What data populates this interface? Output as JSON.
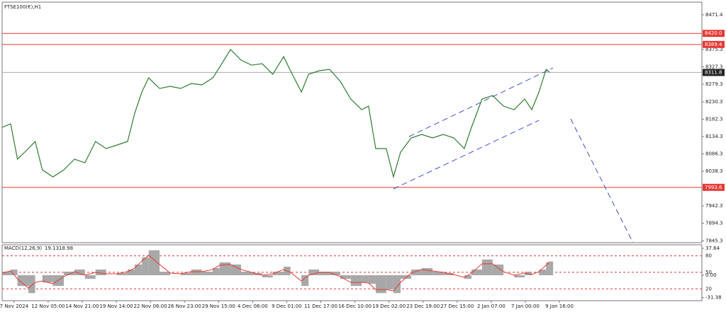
{
  "chart_data": [
    {
      "type": "line",
      "title": "FTSE100(€),H1",
      "x": [
        -0.35,
        -0.1,
        0.1,
        0.42,
        0.62,
        0.83,
        1.14,
        1.46,
        1.77,
        2.08,
        2.39,
        2.7,
        3.02,
        3.33,
        3.54,
        3.75,
        3.95,
        4.27,
        4.58,
        4.89,
        5.2,
        5.51,
        5.83,
        6.03,
        6.35,
        6.66,
        6.97,
        7.28,
        7.59,
        7.91,
        8.11,
        8.43,
        8.64,
        8.95,
        9.26,
        9.57,
        9.88,
        10.2,
        10.4,
        10.61,
        10.92,
        11.13,
        11.34,
        11.65,
        11.96,
        12.28,
        12.59,
        12.9,
        13.21,
        13.42,
        13.73,
        14.04,
        14.36,
        14.67,
        14.98,
        15.19,
        15.4,
        15.61,
        15.71
      ],
      "series": [
        {
          "color": "#2e7d32",
          "values": [
            8159.8,
            8169.5,
            8071.6,
            8101,
            8120.6,
            8042,
            8022.6,
            8042,
            8071.6,
            8061.8,
            8120.6,
            8101,
            8110.8,
            8120.6,
            8198.9,
            8257.7,
            8296.9,
            8267.5,
            8273.4,
            8267.5,
            8281.2,
            8277.3,
            8296.9,
            8326.3,
            8375.3,
            8345.9,
            8332.1,
            8336.1,
            8306.7,
            8355.7,
            8316.5,
            8257.7,
            8306.7,
            8316.5,
            8320.4,
            8287.1,
            8238.1,
            8208.7,
            8218.5,
            8101,
            8101,
            8022.6,
            8091.2,
            8130.4,
            8140.2,
            8130.4,
            8140.2,
            8130.4,
            8101,
            8159.8,
            8238.1,
            8247.9,
            8218.5,
            8208.7,
            8238.1,
            8208.7,
            8257.7,
            8320.4,
            8312.6
          ]
        }
      ],
      "xlim": [
        -0.35,
        20.18
      ],
      "xticks": [
        {
          "value": 0,
          "label": "7 Nov 2024"
        },
        {
          "value": 1,
          "label": "12 Nov 05:00"
        },
        {
          "value": 2,
          "label": "14 Nov 21:00"
        },
        {
          "value": 3,
          "label": "19 Nov 14:00"
        },
        {
          "value": 4,
          "label": "22 Nov 06:00"
        },
        {
          "value": 5,
          "label": "26 Nov 23:00"
        },
        {
          "value": 6,
          "label": "29 Nov 15:00"
        },
        {
          "value": 7,
          "label": "4 Dec 08:00"
        },
        {
          "value": 8,
          "label": "9 Dec 01:00"
        },
        {
          "value": 9,
          "label": "11 Dec 17:00"
        },
        {
          "value": 10,
          "label": "16 Dec 10:00"
        },
        {
          "value": 11,
          "label": "19 Dec 02:00"
        },
        {
          "value": 12,
          "label": "23 Dec 19:00"
        },
        {
          "value": 13,
          "label": "27 Dec 15:00"
        },
        {
          "value": 14,
          "label": "2 Jan 07:00"
        },
        {
          "value": 15,
          "label": "7 Jan 00:00"
        },
        {
          "value": 16,
          "label": "9 Jan 16:00"
        }
      ],
      "ylim": [
        7840.4,
        8506.6
      ],
      "yticks": [
        7845.3,
        7894.3,
        7942.3,
        8038.3,
        8086.3,
        8134.3,
        8182.3,
        8230.3,
        8279.3,
        8327.3,
        8375.3,
        8471.4
      ],
      "levels": [
        {
          "value": 8420,
          "label": "8420.0"
        },
        {
          "value": 8389.4,
          "label": "8389.4"
        },
        {
          "value": 7993.6,
          "label": "7993.6"
        }
      ],
      "level_color": "#e53935",
      "current": 8311.8,
      "trendlines": [
        {
          "x": [
            11.13,
            15.4
          ],
          "y": [
            7989.3,
            8179.3
          ]
        },
        {
          "x": [
            11.59,
            15.81
          ],
          "y": [
            8134.3,
            8324.3
          ]
        },
        {
          "x": [
            16.33,
            18.16
          ],
          "y": [
            8183.3,
            7840.4
          ]
        }
      ],
      "trend_color": "#3f51d6"
    },
    {
      "type": "macd",
      "title": "MACD(12,26,9)",
      "series": [
        {
          "color": "#a8a8a8",
          "values": [
            5,
            8,
            -15,
            -25,
            0,
            -10,
            -15,
            5,
            8,
            -5,
            8,
            0,
            3,
            8,
            15,
            25,
            35,
            5,
            0,
            3,
            8,
            5,
            10,
            18,
            15,
            5,
            3,
            -3,
            5,
            12,
            0,
            -15,
            8,
            5,
            5,
            -5,
            -15,
            -10,
            -12,
            -25,
            -20,
            -25,
            -5,
            8,
            10,
            5,
            3,
            0,
            -5,
            8,
            22,
            15,
            0,
            -3,
            5,
            0,
            8,
            18,
            19.13
          ]
        },
        {
          "color": "#e53935",
          "values": [
            3,
            6,
            -5,
            -18,
            -10,
            -8,
            -12,
            -2,
            5,
            0,
            4,
            2,
            2,
            5,
            10,
            20,
            28,
            15,
            3,
            2,
            5,
            5,
            8,
            14,
            15,
            8,
            4,
            0,
            2,
            8,
            4,
            -8,
            0,
            4,
            4,
            -2,
            -10,
            -10,
            -11,
            -20,
            -20,
            -22,
            -10,
            3,
            8,
            6,
            4,
            1,
            -3,
            3,
            16,
            16,
            5,
            0,
            3,
            1,
            5,
            14,
            18.98
          ]
        }
      ],
      "ylim": [
        -35.6,
        42.6
      ],
      "yticks": [
        37.64,
        {
          "value": 0,
          "label": "0.00"
        },
        -31.38
      ],
      "y2lim": [
        -1.5,
        100
      ],
      "y2ticks": [
        80,
        50,
        20
      ]
    }
  ]
}
